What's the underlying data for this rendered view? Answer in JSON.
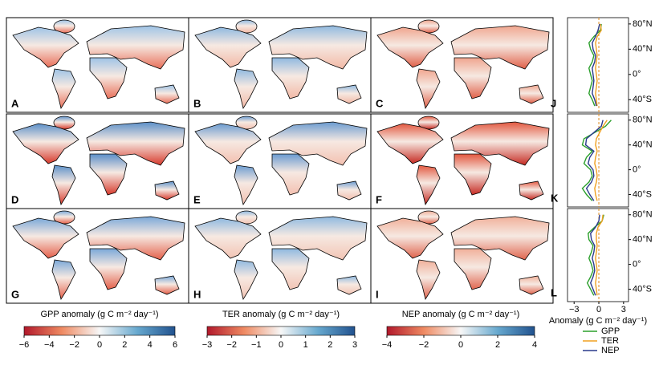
{
  "maps": [
    {
      "label": "A"
    },
    {
      "label": "B"
    },
    {
      "label": "C"
    },
    {
      "label": "D"
    },
    {
      "label": "E"
    },
    {
      "label": "F"
    },
    {
      "label": "G"
    },
    {
      "label": "H"
    },
    {
      "label": "I"
    }
  ],
  "colorbars": [
    {
      "label": "GPP anomaly (g C m⁻² day⁻¹)",
      "clim": [
        -6,
        6
      ],
      "ticks": [
        {
          "value": -6,
          "label": "−6"
        },
        {
          "value": -4,
          "label": "−4"
        },
        {
          "value": -2,
          "label": "−2"
        },
        0,
        2,
        4,
        6
      ]
    },
    {
      "label": "TER anomaly (g C m⁻² day⁻¹)",
      "clim": [
        -3,
        3
      ],
      "ticks": [
        {
          "value": -3,
          "label": "−3"
        },
        {
          "value": -2,
          "label": "−2"
        },
        {
          "value": -1,
          "label": "−1"
        },
        0,
        1,
        2,
        3
      ]
    },
    {
      "label": "NEP anomaly (g C m⁻² day⁻¹)",
      "clim": [
        -4,
        4
      ],
      "ticks": [
        {
          "value": -4,
          "label": "−4"
        },
        {
          "value": -2,
          "label": "−2"
        },
        0,
        2,
        4
      ]
    }
  ],
  "profiles": {
    "type": "line",
    "xlabel": "Anomaly (g C m⁻² day⁻¹)",
    "xlim": [
      -3.8,
      3.6
    ],
    "xticks": [
      {
        "value": -3,
        "label": "−3"
      },
      0,
      3
    ],
    "ylim": [
      -60,
      90
    ],
    "yticks": [
      {
        "value": -40,
        "label": "40°S"
      },
      {
        "value": 0,
        "label": "0°"
      },
      {
        "value": 40,
        "label": "40°N"
      },
      {
        "value": 80,
        "label": "80°N"
      }
    ],
    "latitudes": [
      -50,
      -40,
      -30,
      -20,
      -10,
      0,
      10,
      20,
      30,
      40,
      50,
      60,
      70,
      80
    ],
    "series": [
      {
        "name": "GPP",
        "color": "#2ca02c"
      },
      {
        "name": "TER",
        "color": "#f0a020"
      },
      {
        "name": "NEP",
        "color": "#2a3a8c"
      }
    ],
    "panels": [
      {
        "label": "J",
        "values": [
          [
            -0.5,
            -0.8,
            -1.2,
            -1.0,
            -0.8,
            -1.0,
            -1.2,
            -0.8,
            -0.6,
            -1.0,
            -1.2,
            -0.6,
            0.2,
            0.3
          ],
          [
            -0.2,
            -0.3,
            -0.4,
            -0.3,
            -0.2,
            -0.3,
            -0.4,
            -0.3,
            -0.2,
            -0.3,
            -0.4,
            -0.2,
            0.3,
            0.2
          ],
          [
            -0.3,
            -0.5,
            -0.8,
            -0.7,
            -0.6,
            -0.7,
            -0.8,
            -0.5,
            -0.4,
            -0.7,
            -0.8,
            -0.4,
            -0.1,
            0.1
          ]
        ]
      },
      {
        "label": "K",
        "values": [
          [
            -0.8,
            -1.5,
            -2.0,
            -1.2,
            -0.8,
            -1.0,
            -1.8,
            -1.5,
            -0.8,
            -2.0,
            -1.8,
            -0.5,
            0.8,
            1.5
          ],
          [
            -0.2,
            -0.4,
            -0.5,
            -0.3,
            -0.2,
            -0.3,
            -0.5,
            -0.4,
            -0.2,
            -0.4,
            -0.3,
            0.1,
            0.5,
            1.0
          ],
          [
            -0.6,
            -1.1,
            -1.5,
            -0.9,
            -0.6,
            -0.7,
            -1.3,
            -1.1,
            -0.6,
            -1.6,
            -1.5,
            -0.6,
            0.3,
            0.5
          ]
        ]
      },
      {
        "label": "L",
        "values": [
          [
            -0.6,
            -1.0,
            -1.4,
            -1.0,
            -0.7,
            -0.9,
            -1.2,
            -0.9,
            -0.7,
            -1.2,
            -1.3,
            -0.5,
            0.4,
            0.6
          ],
          [
            -0.2,
            -0.3,
            -0.4,
            -0.3,
            -0.2,
            -0.3,
            -0.4,
            -0.3,
            -0.2,
            -0.3,
            -0.3,
            -0.1,
            0.4,
            0.5
          ],
          [
            -0.4,
            -0.7,
            -1.0,
            -0.7,
            -0.5,
            -0.6,
            -0.8,
            -0.6,
            -0.5,
            -0.9,
            -1.0,
            -0.4,
            0.0,
            0.1
          ]
        ]
      }
    ]
  }
}
